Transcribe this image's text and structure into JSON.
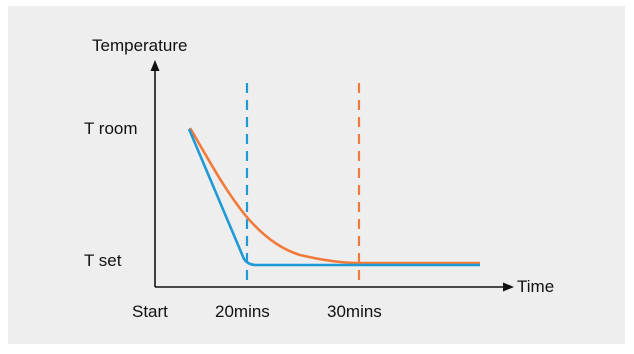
{
  "chart_data": {
    "type": "line",
    "ylabel": "Temperature",
    "xlabel": "Time",
    "x_ticks": [
      "Start",
      "20mins",
      "30mins"
    ],
    "y_ticks": [
      "T room",
      "T set"
    ],
    "series": [
      {
        "color": "#1f9ad6",
        "points": [
          [
            0,
            "T room"
          ],
          [
            20,
            "T set"
          ],
          [
            45,
            "T set"
          ]
        ],
        "marker_line_x": 20
      },
      {
        "color": "#f07a3a",
        "points": [
          [
            0,
            "T room"
          ],
          [
            30,
            "T set"
          ],
          [
            45,
            "T set"
          ]
        ],
        "marker_line_x": 30
      }
    ],
    "xlim": [
      0,
      45
    ],
    "grid": false,
    "legend": "none"
  },
  "colors": {
    "background": "#eeeeee",
    "axis": "#111111",
    "blue": "#1f9ad6",
    "orange": "#f07a3a"
  }
}
